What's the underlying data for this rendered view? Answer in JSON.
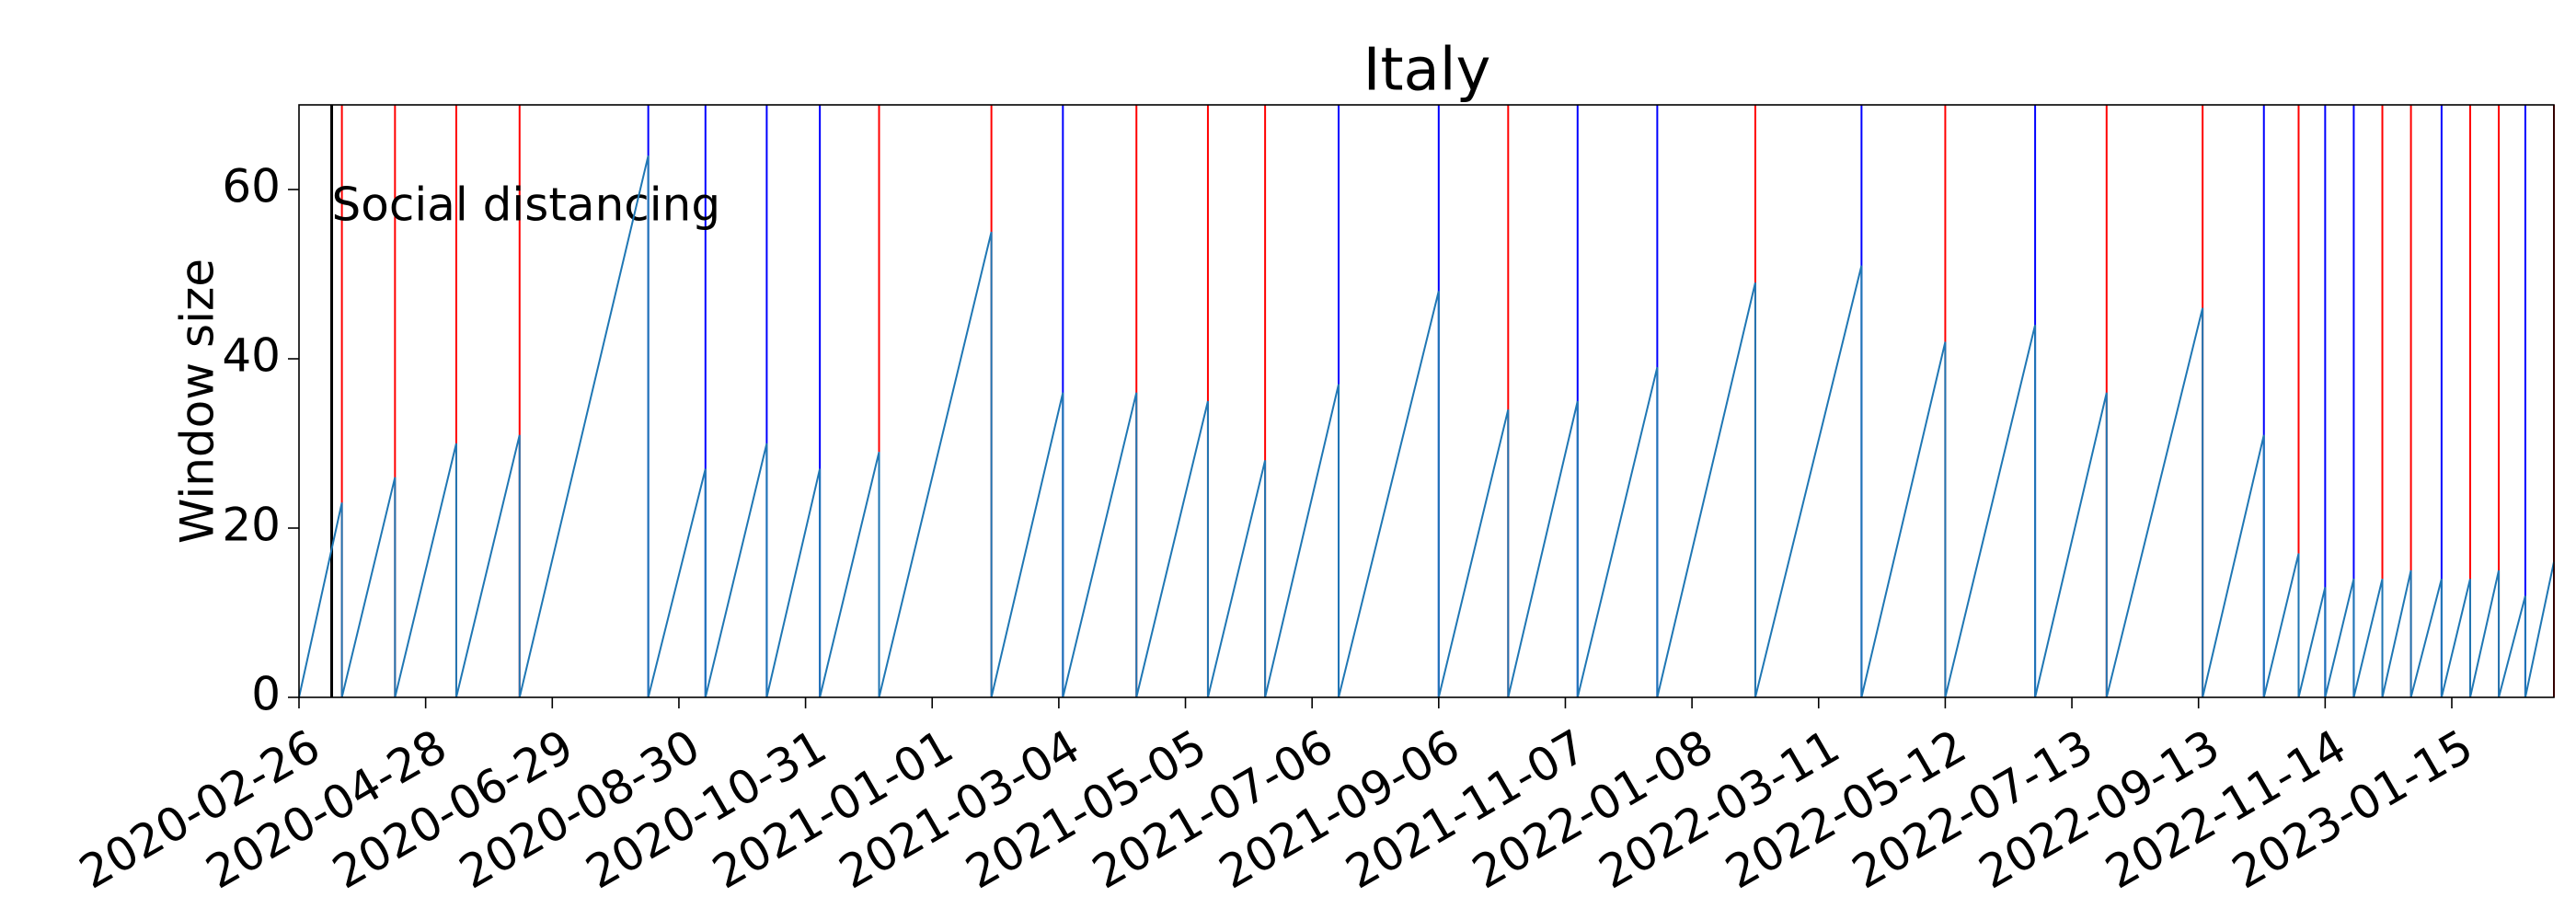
{
  "chart_data": {
    "type": "sawtooth",
    "title": "Italy",
    "y_label": "Window size",
    "xlim": [
      "2020-02-26",
      "2023-03-06"
    ],
    "ylim": [
      0,
      70
    ],
    "xticks": [
      "2020-02-26",
      "2020-04-28",
      "2020-06-29",
      "2020-08-30",
      "2020-10-31",
      "2021-01-01",
      "2021-03-04",
      "2021-05-05",
      "2021-07-06",
      "2021-09-06",
      "2021-11-07",
      "2022-01-08",
      "2022-03-11",
      "2022-05-12",
      "2022-07-13",
      "2022-09-13",
      "2022-11-14",
      "2023-01-15"
    ],
    "yticks": [
      0,
      20,
      40,
      60
    ],
    "series": [
      {
        "color": "#1f77b4",
        "x": [
          "2020-02-26",
          "2020-03-18",
          "2020-03-18",
          "2020-04-13",
          "2020-04-13",
          "2020-05-13",
          "2020-05-13",
          "2020-06-13",
          "2020-06-13",
          "2020-08-15",
          "2020-08-15",
          "2020-09-12",
          "2020-09-12",
          "2020-10-12",
          "2020-10-12",
          "2020-11-07",
          "2020-11-07",
          "2020-12-06",
          "2020-12-06",
          "2021-01-30",
          "2021-01-30",
          "2021-03-06",
          "2021-03-06",
          "2021-04-11",
          "2021-04-11",
          "2021-05-16",
          "2021-05-16",
          "2021-06-13",
          "2021-06-13",
          "2021-07-19",
          "2021-07-19",
          "2021-09-06",
          "2021-09-06",
          "2021-10-10",
          "2021-10-10",
          "2021-11-13",
          "2021-11-13",
          "2021-12-22",
          "2021-12-22",
          "2022-02-08",
          "2022-02-08",
          "2022-04-01",
          "2022-04-01",
          "2022-05-12",
          "2022-05-12",
          "2022-06-25",
          "2022-06-25",
          "2022-07-30",
          "2022-07-30",
          "2022-09-15",
          "2022-09-15",
          "2022-10-15",
          "2022-10-15",
          "2022-11-01",
          "2022-11-01",
          "2022-11-14",
          "2022-11-14",
          "2022-11-28",
          "2022-11-28",
          "2022-12-12",
          "2022-12-12",
          "2022-12-26",
          "2022-12-26",
          "2023-01-10",
          "2023-01-10",
          "2023-01-24",
          "2023-01-24",
          "2023-02-07",
          "2023-02-07",
          "2023-02-20",
          "2023-02-20",
          "2023-03-06"
        ],
        "values": [
          0,
          23,
          0,
          26,
          0,
          30,
          0,
          31,
          0,
          64,
          0,
          27,
          0,
          30,
          0,
          27,
          0,
          29,
          0,
          55,
          0,
          36,
          0,
          36,
          0,
          35,
          0,
          28,
          0,
          37,
          0,
          48,
          0,
          34,
          0,
          35,
          0,
          39,
          0,
          49,
          0,
          51,
          0,
          42,
          0,
          44,
          0,
          36,
          0,
          46,
          0,
          31,
          0,
          17,
          0,
          13,
          0,
          14,
          0,
          14,
          0,
          15,
          0,
          14,
          0,
          14,
          0,
          15,
          0,
          12,
          0,
          16
        ]
      }
    ],
    "change_points": [
      {
        "date": "2020-03-18",
        "color": "#ff0000"
      },
      {
        "date": "2020-04-13",
        "color": "#ff0000"
      },
      {
        "date": "2020-05-13",
        "color": "#ff0000"
      },
      {
        "date": "2020-06-13",
        "color": "#ff0000"
      },
      {
        "date": "2020-08-15",
        "color": "#0000ff"
      },
      {
        "date": "2020-09-12",
        "color": "#0000ff"
      },
      {
        "date": "2020-10-12",
        "color": "#0000ff"
      },
      {
        "date": "2020-11-07",
        "color": "#0000ff"
      },
      {
        "date": "2020-12-06",
        "color": "#ff0000"
      },
      {
        "date": "2021-01-30",
        "color": "#ff0000"
      },
      {
        "date": "2021-03-06",
        "color": "#0000ff"
      },
      {
        "date": "2021-04-11",
        "color": "#ff0000"
      },
      {
        "date": "2021-05-16",
        "color": "#ff0000"
      },
      {
        "date": "2021-06-13",
        "color": "#ff0000"
      },
      {
        "date": "2021-07-19",
        "color": "#0000ff"
      },
      {
        "date": "2021-09-06",
        "color": "#0000ff"
      },
      {
        "date": "2021-10-10",
        "color": "#ff0000"
      },
      {
        "date": "2021-11-13",
        "color": "#0000ff"
      },
      {
        "date": "2021-12-22",
        "color": "#0000ff"
      },
      {
        "date": "2022-02-08",
        "color": "#ff0000"
      },
      {
        "date": "2022-04-01",
        "color": "#0000ff"
      },
      {
        "date": "2022-05-12",
        "color": "#ff0000"
      },
      {
        "date": "2022-06-25",
        "color": "#0000ff"
      },
      {
        "date": "2022-07-30",
        "color": "#ff0000"
      },
      {
        "date": "2022-09-15",
        "color": "#ff0000"
      },
      {
        "date": "2022-10-15",
        "color": "#0000ff"
      },
      {
        "date": "2022-11-01",
        "color": "#ff0000"
      },
      {
        "date": "2022-11-14",
        "color": "#0000ff"
      },
      {
        "date": "2022-11-28",
        "color": "#0000ff"
      },
      {
        "date": "2022-12-12",
        "color": "#ff0000"
      },
      {
        "date": "2022-12-26",
        "color": "#ff0000"
      },
      {
        "date": "2023-01-10",
        "color": "#0000ff"
      },
      {
        "date": "2023-01-24",
        "color": "#ff0000"
      },
      {
        "date": "2023-02-07",
        "color": "#ff0000"
      },
      {
        "date": "2023-02-20",
        "color": "#0000ff"
      },
      {
        "date": "2023-03-06",
        "color": "#ff0000"
      }
    ],
    "annotation": {
      "date": "2020-03-13",
      "text": "Social distancing",
      "color": "#000000"
    }
  }
}
